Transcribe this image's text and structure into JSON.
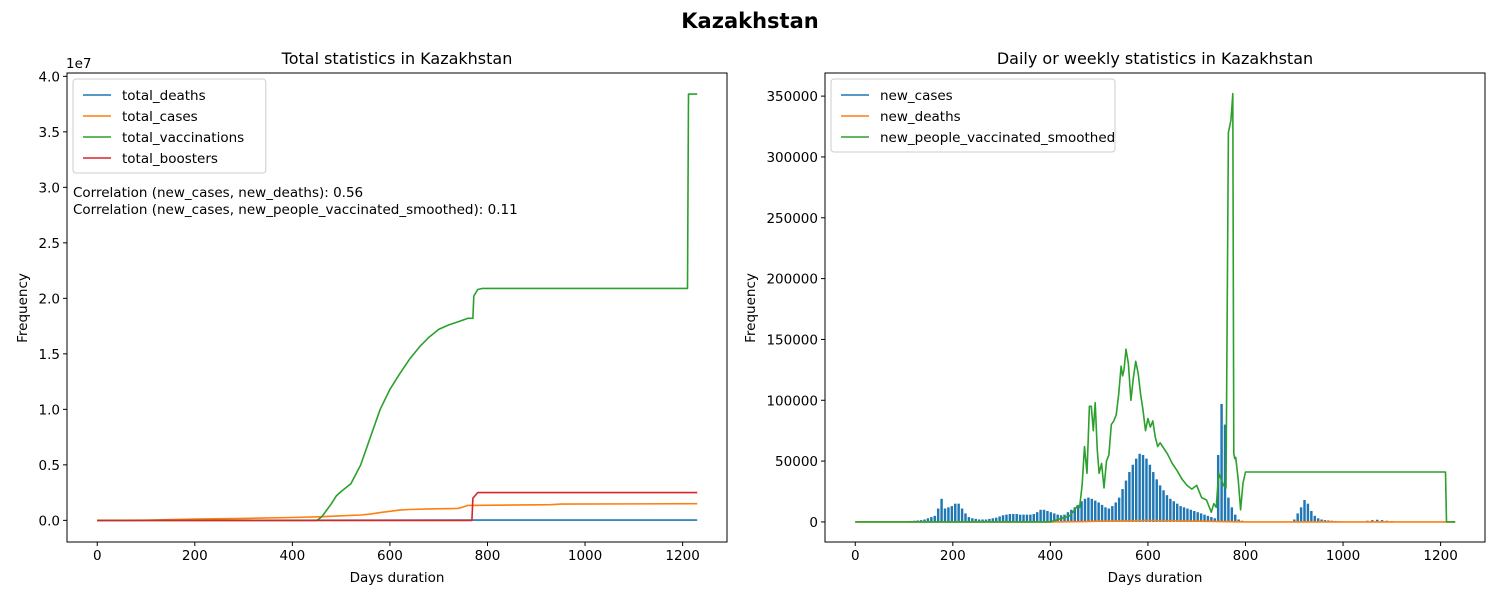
{
  "figure": {
    "suptitle": "Kazakhstan"
  },
  "colors": {
    "blue": "#1f77b4",
    "orange": "#ff7f0e",
    "green": "#2ca02c",
    "red": "#d62728"
  },
  "chart_data": [
    {
      "type": "line",
      "title": "Total statistics in Kazakhstan",
      "xlabel": "Days duration",
      "ylabel": "Frequency",
      "y_multiplier_label": "1e7",
      "xlim": [
        -62,
        1291
      ],
      "ylim": [
        -1950000,
        40300000
      ],
      "xticks": [
        0,
        200,
        400,
        600,
        800,
        1000,
        1200
      ],
      "xtick_labels": [
        "0",
        "200",
        "400",
        "600",
        "800",
        "1000",
        "1200"
      ],
      "yticks": [
        0,
        5000000,
        10000000,
        15000000,
        20000000,
        25000000,
        30000000,
        35000000,
        40000000
      ],
      "ytick_labels": [
        "0.0",
        "0.5",
        "1.0",
        "1.5",
        "2.0",
        "2.5",
        "3.0",
        "3.5",
        "4.0"
      ],
      "legend_position": "upper-left",
      "annotations": [
        "Correlation (new_cases, new_deaths): 0.56",
        "Correlation (new_cases, new_people_vaccinated_smoothed): 0.11"
      ],
      "series": [
        {
          "name": "total_deaths",
          "color": "#1f77b4",
          "x": [
            0,
            770,
            1230
          ],
          "y": [
            0,
            19000,
            19000
          ]
        },
        {
          "name": "total_cases",
          "color": "#ff7f0e",
          "x": [
            0,
            100,
            200,
            300,
            400,
            460,
            500,
            540,
            560,
            580,
            600,
            620,
            640,
            680,
            740,
            750,
            760,
            930,
            950,
            1230
          ],
          "y": [
            0,
            15000,
            120000,
            180000,
            260000,
            330000,
            410000,
            480000,
            560000,
            700000,
            820000,
            920000,
            980000,
            1030000,
            1080000,
            1200000,
            1350000,
            1410000,
            1460000,
            1500000
          ]
        },
        {
          "name": "total_vaccinations",
          "color": "#2ca02c",
          "x": [
            0,
            450,
            460,
            470,
            480,
            490,
            500,
            520,
            540,
            560,
            580,
            600,
            620,
            640,
            660,
            680,
            700,
            720,
            740,
            760,
            770,
            772,
            780,
            790,
            1210,
            1212,
            1230
          ],
          "y": [
            0,
            0,
            300000,
            900000,
            1500000,
            2200000,
            2600000,
            3300000,
            5000000,
            7500000,
            10000000,
            11800000,
            13200000,
            14500000,
            15600000,
            16500000,
            17200000,
            17600000,
            17900000,
            18200000,
            18200000,
            20200000,
            20800000,
            20900000,
            20900000,
            38400000,
            38400000
          ]
        },
        {
          "name": "total_boosters",
          "color": "#d62728",
          "x": [
            0,
            768,
            770,
            780,
            1230
          ],
          "y": [
            0,
            0,
            2000000,
            2500000,
            2500000
          ]
        }
      ]
    },
    {
      "type": "bar+line",
      "title": "Daily or weekly statistics in Kazakhstan",
      "xlabel": "Days duration",
      "ylabel": "Frequency",
      "xlim": [
        -62,
        1291
      ],
      "ylim": [
        -16500,
        369000
      ],
      "xticks": [
        0,
        200,
        400,
        600,
        800,
        1000,
        1200
      ],
      "xtick_labels": [
        "0",
        "200",
        "400",
        "600",
        "800",
        "1000",
        "1200"
      ],
      "yticks": [
        0,
        50000,
        100000,
        150000,
        200000,
        250000,
        300000,
        350000
      ],
      "ytick_labels": [
        "0",
        "50000",
        "100000",
        "150000",
        "200000",
        "250000",
        "300000",
        "350000"
      ],
      "legend_position": "upper-left",
      "series": [
        {
          "name": "new_cases",
          "color": "#1f77b4",
          "render": "bars",
          "bar_width_days": 5,
          "x": [
            100,
            107,
            114,
            121,
            128,
            135,
            142,
            149,
            156,
            163,
            170,
            177,
            184,
            191,
            198,
            205,
            212,
            219,
            226,
            233,
            240,
            247,
            254,
            261,
            268,
            275,
            282,
            289,
            296,
            303,
            310,
            317,
            324,
            331,
            338,
            345,
            352,
            359,
            366,
            373,
            380,
            387,
            394,
            401,
            408,
            415,
            422,
            429,
            436,
            443,
            450,
            457,
            464,
            471,
            478,
            485,
            492,
            499,
            506,
            513,
            520,
            527,
            534,
            541,
            548,
            555,
            562,
            569,
            576,
            583,
            590,
            597,
            604,
            611,
            618,
            625,
            632,
            639,
            646,
            653,
            660,
            667,
            674,
            681,
            688,
            695,
            702,
            709,
            716,
            723,
            730,
            737,
            744,
            751,
            758,
            765,
            772,
            779,
            786,
            793,
            900,
            907,
            914,
            921,
            928,
            935,
            942,
            949,
            956,
            963,
            970,
            977,
            984,
            991,
            1050,
            1060,
            1070,
            1080,
            1090,
            1100
          ],
          "y": [
            500,
            600,
            800,
            1000,
            1200,
            1500,
            2000,
            3000,
            4000,
            5000,
            11000,
            19000,
            11000,
            12000,
            13000,
            15000,
            15000,
            11000,
            7000,
            4000,
            3000,
            2500,
            2000,
            2000,
            2000,
            2500,
            3000,
            3500,
            4500,
            5500,
            6000,
            6500,
            6500,
            6500,
            6000,
            6000,
            6000,
            6000,
            6500,
            8000,
            10000,
            10000,
            9000,
            8000,
            7000,
            6000,
            5500,
            6000,
            8000,
            10000,
            12000,
            14000,
            17000,
            19000,
            20000,
            19000,
            17500,
            16000,
            14000,
            12000,
            11000,
            13000,
            16000,
            20000,
            27000,
            34000,
            41000,
            47000,
            52000,
            56000,
            55000,
            52000,
            47000,
            41000,
            35000,
            30000,
            26000,
            22000,
            19000,
            17000,
            15000,
            13000,
            12000,
            11000,
            10000,
            9000,
            8000,
            7000,
            6000,
            5000,
            4000,
            3000,
            55000,
            97000,
            80000,
            20000,
            12000,
            6000,
            2000,
            1000,
            2000,
            7000,
            12000,
            18000,
            15000,
            9000,
            5000,
            3000,
            2000,
            1500,
            1200,
            1000,
            800,
            600,
            1000,
            1500,
            1800,
            1500,
            1000,
            700
          ]
        },
        {
          "name": "new_deaths",
          "color": "#ff7f0e",
          "render": "line",
          "x": [
            0,
            400,
            470,
            500,
            550,
            600,
            650,
            700,
            750,
            800,
            1230
          ],
          "y": [
            0,
            0,
            300,
            600,
            900,
            1200,
            1000,
            600,
            300,
            50,
            0
          ]
        },
        {
          "name": "new_people_vaccinated_smoothed",
          "color": "#2ca02c",
          "render": "line",
          "x": [
            0,
            400,
            440,
            450,
            455,
            460,
            465,
            470,
            475,
            480,
            484,
            488,
            492,
            496,
            500,
            505,
            510,
            515,
            520,
            525,
            530,
            535,
            540,
            545,
            548,
            551,
            555,
            560,
            565,
            570,
            575,
            580,
            585,
            590,
            595,
            600,
            605,
            610,
            615,
            620,
            625,
            630,
            640,
            650,
            660,
            670,
            680,
            690,
            700,
            710,
            720,
            730,
            735,
            740,
            745,
            750,
            755,
            760,
            765,
            770,
            772,
            774,
            776,
            778,
            780,
            785,
            790,
            795,
            800,
            1210,
            1212,
            1230
          ],
          "y": [
            0,
            0,
            5000,
            10000,
            13000,
            12000,
            30000,
            62000,
            40000,
            95000,
            95000,
            75000,
            98000,
            60000,
            40000,
            48000,
            28000,
            50000,
            55000,
            80000,
            83000,
            88000,
            105000,
            128000,
            120000,
            125000,
            142000,
            130000,
            100000,
            118000,
            132000,
            122000,
            105000,
            92000,
            75000,
            85000,
            78000,
            83000,
            70000,
            62000,
            65000,
            62000,
            56000,
            48000,
            42000,
            35000,
            30000,
            27000,
            30000,
            20000,
            18000,
            8000,
            15000,
            12000,
            40000,
            35000,
            30000,
            28000,
            320000,
            330000,
            340000,
            352000,
            56000,
            52000,
            53000,
            35000,
            10000,
            32000,
            41000,
            41000,
            0,
            0
          ]
        }
      ]
    }
  ]
}
